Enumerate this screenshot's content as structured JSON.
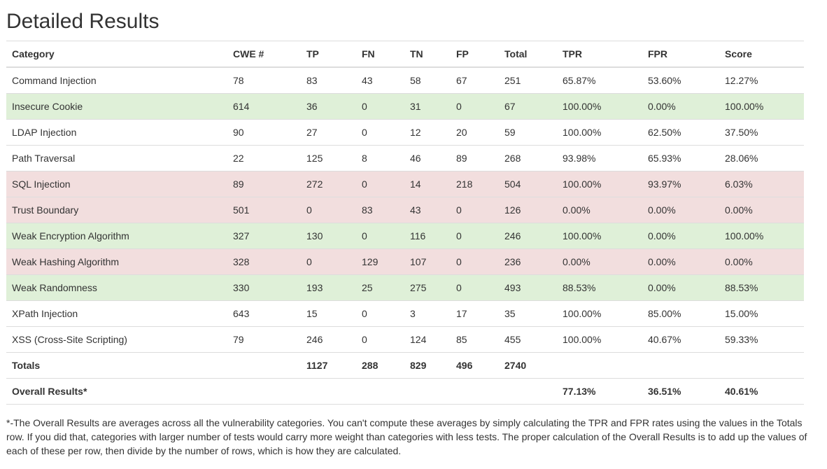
{
  "title": "Detailed Results",
  "table": {
    "columns": [
      "Category",
      "CWE #",
      "TP",
      "FN",
      "TN",
      "FP",
      "Total",
      "TPR",
      "FPR",
      "Score"
    ],
    "rows": [
      {
        "status": "none",
        "cells": [
          "Command Injection",
          "78",
          "83",
          "43",
          "58",
          "67",
          "251",
          "65.87%",
          "53.60%",
          "12.27%"
        ]
      },
      {
        "status": "good",
        "cells": [
          "Insecure Cookie",
          "614",
          "36",
          "0",
          "31",
          "0",
          "67",
          "100.00%",
          "0.00%",
          "100.00%"
        ]
      },
      {
        "status": "none",
        "cells": [
          "LDAP Injection",
          "90",
          "27",
          "0",
          "12",
          "20",
          "59",
          "100.00%",
          "62.50%",
          "37.50%"
        ]
      },
      {
        "status": "none",
        "cells": [
          "Path Traversal",
          "22",
          "125",
          "8",
          "46",
          "89",
          "268",
          "93.98%",
          "65.93%",
          "28.06%"
        ]
      },
      {
        "status": "bad",
        "cells": [
          "SQL Injection",
          "89",
          "272",
          "0",
          "14",
          "218",
          "504",
          "100.00%",
          "93.97%",
          "6.03%"
        ]
      },
      {
        "status": "bad",
        "cells": [
          "Trust Boundary",
          "501",
          "0",
          "83",
          "43",
          "0",
          "126",
          "0.00%",
          "0.00%",
          "0.00%"
        ]
      },
      {
        "status": "good",
        "cells": [
          "Weak Encryption Algorithm",
          "327",
          "130",
          "0",
          "116",
          "0",
          "246",
          "100.00%",
          "0.00%",
          "100.00%"
        ]
      },
      {
        "status": "bad",
        "cells": [
          "Weak Hashing Algorithm",
          "328",
          "0",
          "129",
          "107",
          "0",
          "236",
          "0.00%",
          "0.00%",
          "0.00%"
        ]
      },
      {
        "status": "good",
        "cells": [
          "Weak Randomness",
          "330",
          "193",
          "25",
          "275",
          "0",
          "493",
          "88.53%",
          "0.00%",
          "88.53%"
        ]
      },
      {
        "status": "none",
        "cells": [
          "XPath Injection",
          "643",
          "15",
          "0",
          "3",
          "17",
          "35",
          "100.00%",
          "85.00%",
          "15.00%"
        ]
      },
      {
        "status": "none",
        "cells": [
          "XSS (Cross-Site Scripting)",
          "79",
          "246",
          "0",
          "124",
          "85",
          "455",
          "100.00%",
          "40.67%",
          "59.33%"
        ]
      }
    ],
    "totals": [
      "Totals",
      "",
      "1127",
      "288",
      "829",
      "496",
      "2740",
      "",
      "",
      ""
    ],
    "overall": [
      "Overall Results*",
      "",
      "",
      "",
      "",
      "",
      "",
      "77.13%",
      "36.51%",
      "40.61%"
    ]
  },
  "footnote": "*-The Overall Results are averages across all the vulnerability categories. You can't compute these averages by simply calculating the TPR and FPR rates using the values in the Totals row. If you did that, categories with larger number of tests would carry more weight than categories with less tests. The proper calculation of the Overall Results is to add up the values of each of these per row, then divide by the number of rows, which is how they are calculated.",
  "colors": {
    "success_row": "#dff0d8",
    "danger_row": "#f2dede",
    "border": "#dddddd",
    "text": "#333333"
  }
}
